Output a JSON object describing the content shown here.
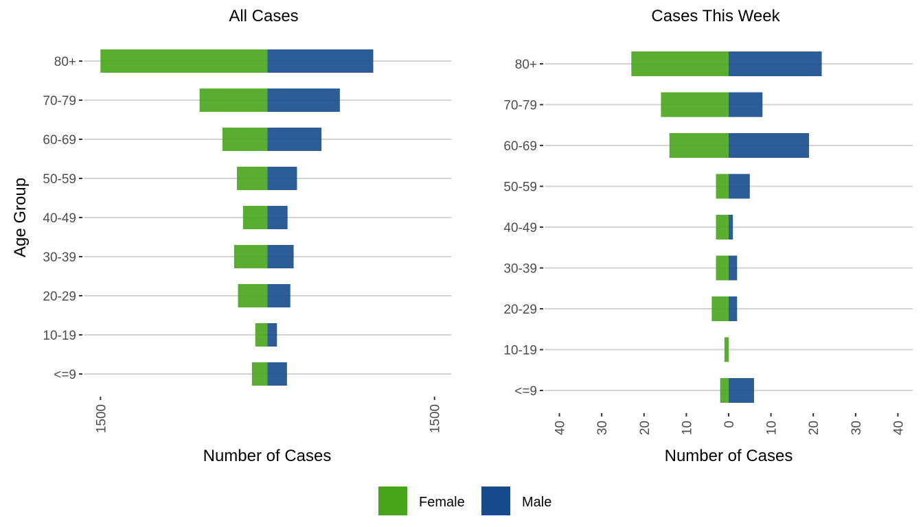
{
  "colors": {
    "female": "#47A41A",
    "male": "#154B8C"
  },
  "legend": {
    "position": "bottom",
    "items": [
      {
        "key": "female",
        "label": "Female"
      },
      {
        "key": "male",
        "label": "Male"
      }
    ]
  },
  "chart_data": [
    {
      "type": "bar",
      "orientation": "horizontal",
      "layout": "population-pyramid",
      "title": "All Cases",
      "xlabel": "Number of Cases",
      "ylabel": "Age Group",
      "categories": [
        "80+",
        "70-79",
        "60-69",
        "50-59",
        "40-49",
        "30-39",
        "20-29",
        "10-19",
        "<=9"
      ],
      "series": [
        {
          "name": "Female",
          "key": "female",
          "side": "left",
          "values": [
            1500,
            610,
            405,
            275,
            220,
            300,
            265,
            110,
            140
          ]
        },
        {
          "name": "Male",
          "key": "male",
          "side": "right",
          "values": [
            950,
            650,
            485,
            265,
            180,
            235,
            205,
            85,
            175
          ]
        }
      ],
      "xlim": [
        -1650,
        1650
      ],
      "xticks": [
        -1500,
        1500
      ],
      "xtick_labels": [
        "1500",
        "1500"
      ],
      "grid": true
    },
    {
      "type": "bar",
      "orientation": "horizontal",
      "layout": "population-pyramid",
      "title": "Cases This Week",
      "xlabel": "Number of Cases",
      "ylabel": "",
      "categories": [
        "80+",
        "70-79",
        "60-69",
        "50-59",
        "40-49",
        "30-39",
        "20-29",
        "10-19",
        "<=9"
      ],
      "series": [
        {
          "name": "Female",
          "key": "female",
          "side": "left",
          "values": [
            23,
            16,
            14,
            3,
            3,
            3,
            4,
            1,
            2
          ]
        },
        {
          "name": "Male",
          "key": "male",
          "side": "right",
          "values": [
            22,
            8,
            19,
            5,
            1,
            2,
            2,
            0,
            6
          ]
        }
      ],
      "xlim": [
        -43.5,
        43.5
      ],
      "xticks": [
        -40,
        -30,
        -20,
        -10,
        0,
        10,
        20,
        30,
        40
      ],
      "xtick_labels": [
        "40",
        "30",
        "20",
        "10",
        "0",
        "10",
        "20",
        "30",
        "40"
      ],
      "grid": true
    }
  ]
}
